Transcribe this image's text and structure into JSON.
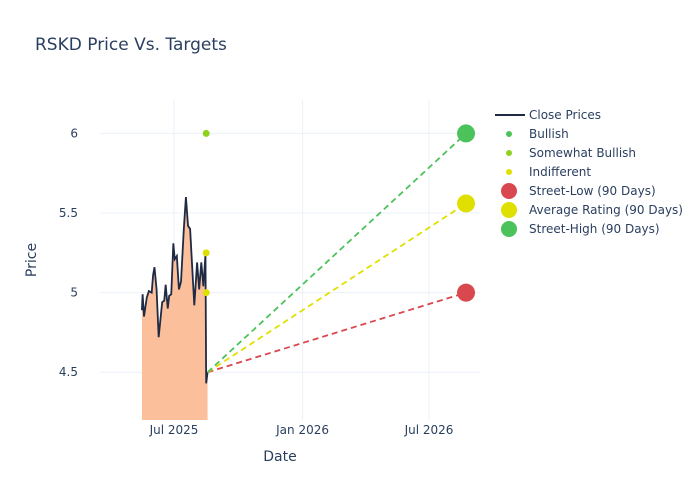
{
  "chart_data": {
    "type": "line",
    "title": "RSKD Price Vs. Targets",
    "xlabel": "Date",
    "ylabel": "Price",
    "xlim": [
      "2025-03-17",
      "2026-09-12"
    ],
    "ylim": [
      4.2,
      6.21
    ],
    "x_ticks": [
      {
        "date": "2025-07-01",
        "label": "Jul 2025"
      },
      {
        "date": "2026-01-01",
        "label": "Jan 2026"
      },
      {
        "date": "2026-07-01",
        "label": "Jul 2026"
      }
    ],
    "y_ticks": [
      {
        "value": 4.5,
        "label": "4.5"
      },
      {
        "value": 5,
        "label": "5"
      },
      {
        "value": 5.5,
        "label": "5.5"
      },
      {
        "value": 6,
        "label": "6"
      }
    ],
    "grid": true,
    "legend_position": "right",
    "close_prices": {
      "name": "Close Prices",
      "color": "#1f2a44",
      "fill": "#fbbf9b",
      "dates": [
        "2025-05-16",
        "2025-05-17",
        "2025-05-19",
        "2025-05-23",
        "2025-05-26",
        "2025-05-30",
        "2025-06-01",
        "2025-06-03",
        "2025-06-06",
        "2025-06-09",
        "2025-06-14",
        "2025-06-17",
        "2025-06-19",
        "2025-06-22",
        "2025-06-24",
        "2025-06-27",
        "2025-06-30",
        "2025-07-02",
        "2025-07-05",
        "2025-07-08",
        "2025-07-11",
        "2025-07-15",
        "2025-07-18",
        "2025-07-21",
        "2025-07-24",
        "2025-07-30",
        "2025-08-03",
        "2025-08-06",
        "2025-08-09",
        "2025-08-12",
        "2025-08-15",
        "2025-08-16",
        "2025-08-18"
      ],
      "values": [
        4.89,
        4.99,
        4.85,
        4.97,
        5.01,
        5.0,
        5.11,
        5.16,
        5.02,
        4.72,
        4.94,
        4.95,
        5.05,
        4.9,
        4.98,
        4.99,
        5.31,
        5.21,
        5.23,
        5.02,
        5.07,
        5.4,
        5.6,
        5.42,
        5.4,
        4.92,
        5.19,
        5.02,
        5.19,
        5.04,
        5.24,
        4.43,
        4.5
      ]
    },
    "ratings": [
      {
        "name": "Bullish",
        "color": "#4cc25a",
        "points": []
      },
      {
        "name": "Somewhat Bullish",
        "color": "#8fd11f",
        "points": [
          {
            "date": "2025-08-16",
            "value": 6.0
          }
        ]
      },
      {
        "name": "Indifferent",
        "color": "#e0e000",
        "points": [
          {
            "date": "2025-08-16",
            "value": 5.25
          },
          {
            "date": "2025-08-16",
            "value": 5.0
          }
        ]
      }
    ],
    "targets": {
      "start": {
        "date": "2025-08-18",
        "value": 4.5
      },
      "date": "2026-08-23",
      "series": [
        {
          "name": "Street-Low (90 Days)",
          "value": 5.0,
          "color": "#d9484f"
        },
        {
          "name": "Average Rating (90 Days)",
          "value": 5.56,
          "color": "#e0e000"
        },
        {
          "name": "Street-High (90 Days)",
          "value": 6.0,
          "color": "#4cc25a"
        }
      ]
    }
  }
}
